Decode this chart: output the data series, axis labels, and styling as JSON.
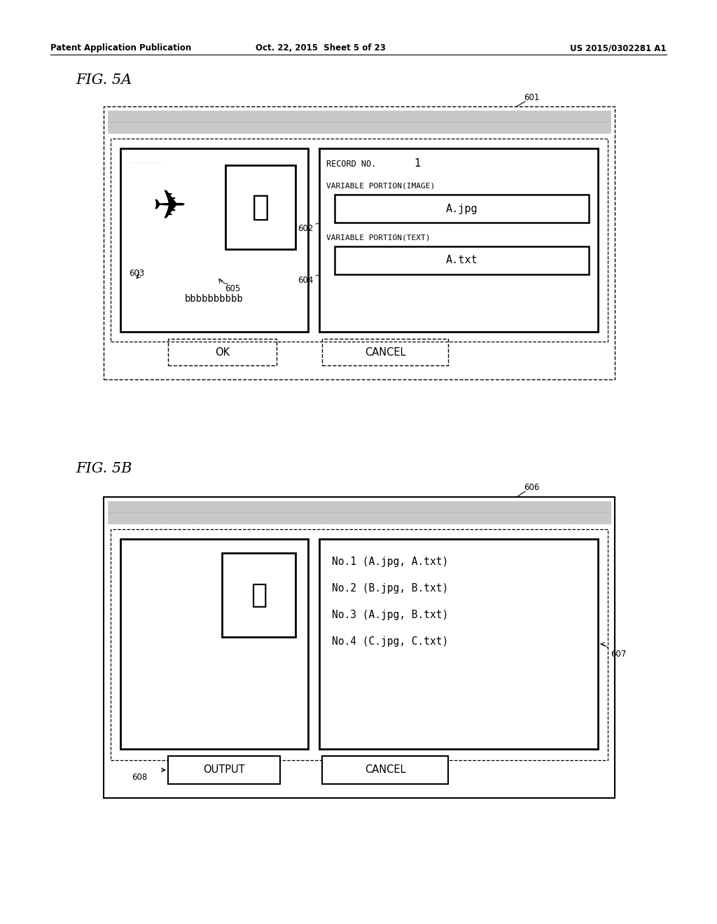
{
  "bg_color": "#ffffff",
  "header_left": "Patent Application Publication",
  "header_mid": "Oct. 22, 2015  Sheet 5 of 23",
  "header_right": "US 2015/0302281 A1",
  "fig5a_label": "FIG. 5A",
  "fig5b_label": "FIG. 5B",
  "label_601": "601",
  "label_602": "602",
  "label_603": "603",
  "label_604": "604",
  "label_605": "605",
  "label_606": "606",
  "label_607": "607",
  "label_608": "608",
  "record_no_text": "RECORD NO.",
  "record_no_value": "1",
  "var_image_text": "VARIABLE PORTION(IMAGE)",
  "var_text_text": "VARIABLE PORTION(TEXT)",
  "ajpg": "A.jpg",
  "atxt": "A.txt",
  "bbbb": "bbbbbbbbbb",
  "ok_text": "OK",
  "cancel_text": "CANCEL",
  "output_text": "OUTPUT",
  "cancel2_text": "CANCEL",
  "list_line1": "No.1 (A.jpg, A.txt)",
  "list_line2": "No.2 (B.jpg, B.txt)",
  "list_line3": "No.3 (A.jpg, B.txt)",
  "list_line4": "No.4 (C.jpg, C.txt)"
}
